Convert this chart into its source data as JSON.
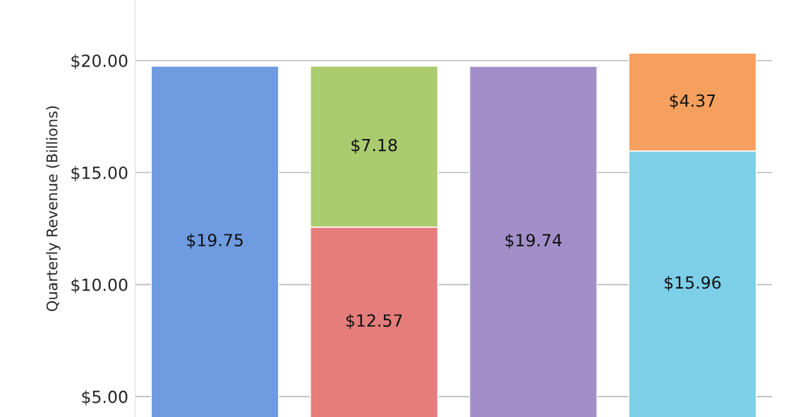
{
  "chart_data": {
    "type": "bar",
    "stacked": true,
    "ylabel": "Quarterly Revenue (Billions)",
    "categories": [
      null,
      null,
      null,
      null
    ],
    "series": [
      {
        "color": "#6f9be0",
        "values": [
          19.75,
          null,
          null,
          null
        ],
        "value_labels": [
          "$19.75",
          null,
          null,
          null
        ]
      },
      {
        "color": "#e57d7b",
        "values": [
          null,
          12.57,
          null,
          null
        ],
        "value_labels": [
          null,
          "$12.57",
          null,
          null
        ]
      },
      {
        "color": "#aacb6e",
        "values": [
          null,
          7.18,
          null,
          null
        ],
        "value_labels": [
          null,
          "$7.18",
          null,
          null
        ]
      },
      {
        "color": "#a28fc9",
        "values": [
          null,
          null,
          19.74,
          null
        ],
        "value_labels": [
          null,
          null,
          "$19.74",
          null
        ]
      },
      {
        "color": "#7dcfe8",
        "values": [
          null,
          null,
          null,
          15.96
        ],
        "value_labels": [
          null,
          null,
          null,
          "$15.96"
        ]
      },
      {
        "color": "#f5a05e",
        "values": [
          null,
          null,
          null,
          4.37
        ],
        "value_labels": [
          null,
          null,
          null,
          "$4.37"
        ]
      }
    ],
    "ylim": [
      4.09,
      22.7
    ],
    "yticks": [
      {
        "value": 5,
        "label": "$5.00"
      },
      {
        "value": 10,
        "label": "$10.00"
      },
      {
        "value": 15,
        "label": "$15.00"
      },
      {
        "value": 20,
        "label": "$20.00"
      }
    ],
    "grid": "y",
    "legend": false
  }
}
